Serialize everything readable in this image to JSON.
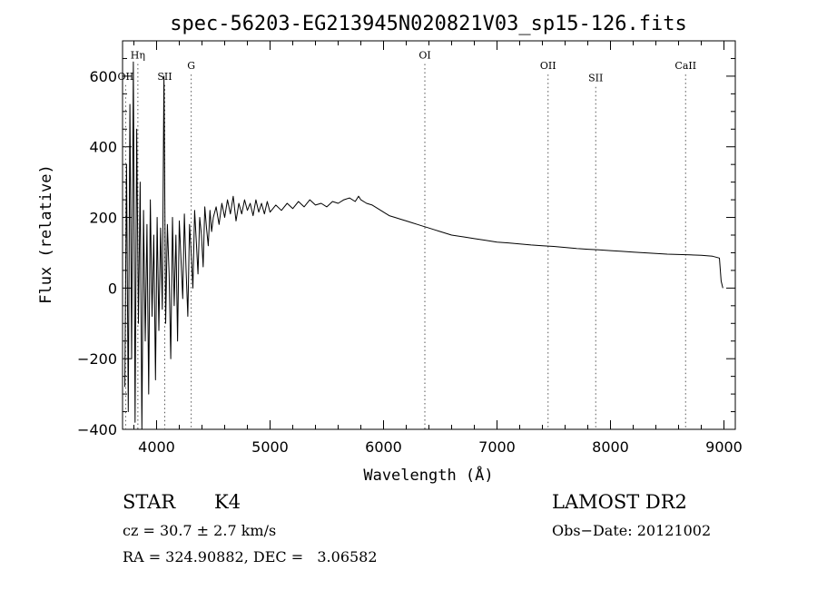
{
  "chart_data": {
    "type": "line",
    "title": "spec-56203-EG213945N020821V03_sp15-126.fits",
    "xlabel": "Wavelength (Å)",
    "ylabel": "Flux (relative)",
    "xlim": [
      3700,
      9100
    ],
    "ylim": [
      -400,
      700
    ],
    "x_ticks": [
      4000,
      5000,
      6000,
      7000,
      8000,
      9000
    ],
    "x_tick_labels": [
      "4000",
      "5000",
      "6000",
      "7000",
      "8000",
      "9000"
    ],
    "y_ticks": [
      -400,
      -200,
      0,
      200,
      400,
      600
    ],
    "y_tick_labels": [
      "−400",
      "−200",
      "0",
      "200",
      "400",
      "600"
    ],
    "grid": false,
    "line_color": "#000000",
    "series": [
      {
        "x": [
          3720,
          3735,
          3750,
          3765,
          3780,
          3795,
          3810,
          3825,
          3840,
          3855,
          3870,
          3885,
          3900,
          3915,
          3930,
          3945,
          3960,
          3975,
          3990,
          4005,
          4020,
          4035,
          4050,
          4065,
          4080,
          4095,
          4110,
          4125,
          4140,
          4155,
          4170,
          4185,
          4200,
          4215,
          4230,
          4245,
          4260,
          4275,
          4290,
          4305,
          4320,
          4335,
          4350,
          4365,
          4380,
          4395,
          4410,
          4425,
          4440,
          4455,
          4470,
          4485,
          4500,
          4525,
          4550,
          4575,
          4600,
          4625,
          4650,
          4675,
          4700,
          4725,
          4750,
          4775,
          4800,
          4825,
          4850,
          4875,
          4900,
          4925,
          4950,
          4975,
          5000,
          5050,
          5100,
          5150,
          5200,
          5250,
          5300,
          5350,
          5400,
          5450,
          5500,
          5550,
          5600,
          5650,
          5700,
          5750,
          5780,
          5800,
          5850,
          5900,
          5950,
          6000,
          6050,
          6100,
          6150,
          6200,
          6250,
          6300,
          6350,
          6400,
          6450,
          6500,
          6600,
          6700,
          6800,
          6900,
          7000,
          7100,
          7200,
          7300,
          7400,
          7500,
          7600,
          7700,
          7800,
          7900,
          8000,
          8100,
          8200,
          8300,
          8400,
          8500,
          8600,
          8700,
          8800,
          8900,
          8960,
          8975,
          8990
        ],
        "y": [
          -280,
          350,
          -350,
          520,
          -200,
          640,
          -380,
          450,
          -100,
          300,
          -420,
          220,
          -150,
          180,
          -300,
          250,
          -80,
          150,
          -260,
          200,
          -120,
          170,
          -60,
          600,
          -100,
          180,
          40,
          -200,
          200,
          -50,
          150,
          -150,
          190,
          80,
          -30,
          210,
          50,
          -80,
          180,
          100,
          0,
          220,
          130,
          40,
          200,
          150,
          60,
          230,
          170,
          120,
          220,
          160,
          200,
          230,
          180,
          240,
          200,
          250,
          210,
          260,
          190,
          240,
          210,
          250,
          220,
          240,
          205,
          250,
          215,
          240,
          210,
          245,
          215,
          235,
          220,
          240,
          225,
          245,
          230,
          250,
          235,
          240,
          230,
          245,
          240,
          250,
          255,
          245,
          260,
          250,
          240,
          235,
          225,
          215,
          205,
          200,
          195,
          190,
          185,
          180,
          175,
          170,
          165,
          160,
          150,
          145,
          140,
          135,
          130,
          128,
          125,
          122,
          120,
          118,
          115,
          112,
          110,
          108,
          106,
          104,
          102,
          100,
          98,
          96,
          95,
          94,
          93,
          90,
          85,
          20,
          0
        ]
      }
    ],
    "annotations": [
      {
        "label": "OII",
        "x": 3727,
        "y": 590
      },
      {
        "label": "Hη",
        "x": 3835,
        "y": 650
      },
      {
        "label": "SII",
        "x": 4072,
        "y": 590
      },
      {
        "label": "G",
        "x": 4305,
        "y": 620
      },
      {
        "label": "OI",
        "x": 6364,
        "y": 650
      },
      {
        "label": "OII",
        "x": 7450,
        "y": 620
      },
      {
        "label": "SII",
        "x": 7870,
        "y": 585
      },
      {
        "label": "CaII",
        "x": 8662,
        "y": 620
      }
    ]
  },
  "info": {
    "class_label": "STAR",
    "subclass_label": "K4",
    "survey_label": "LAMOST DR2",
    "cz_text": "cz = 30.7 ± 2.7 km/s",
    "obs_date_text": "Obs−Date: 20121002",
    "radec_text": "RA = 324.90882, DEC =   3.06582"
  }
}
